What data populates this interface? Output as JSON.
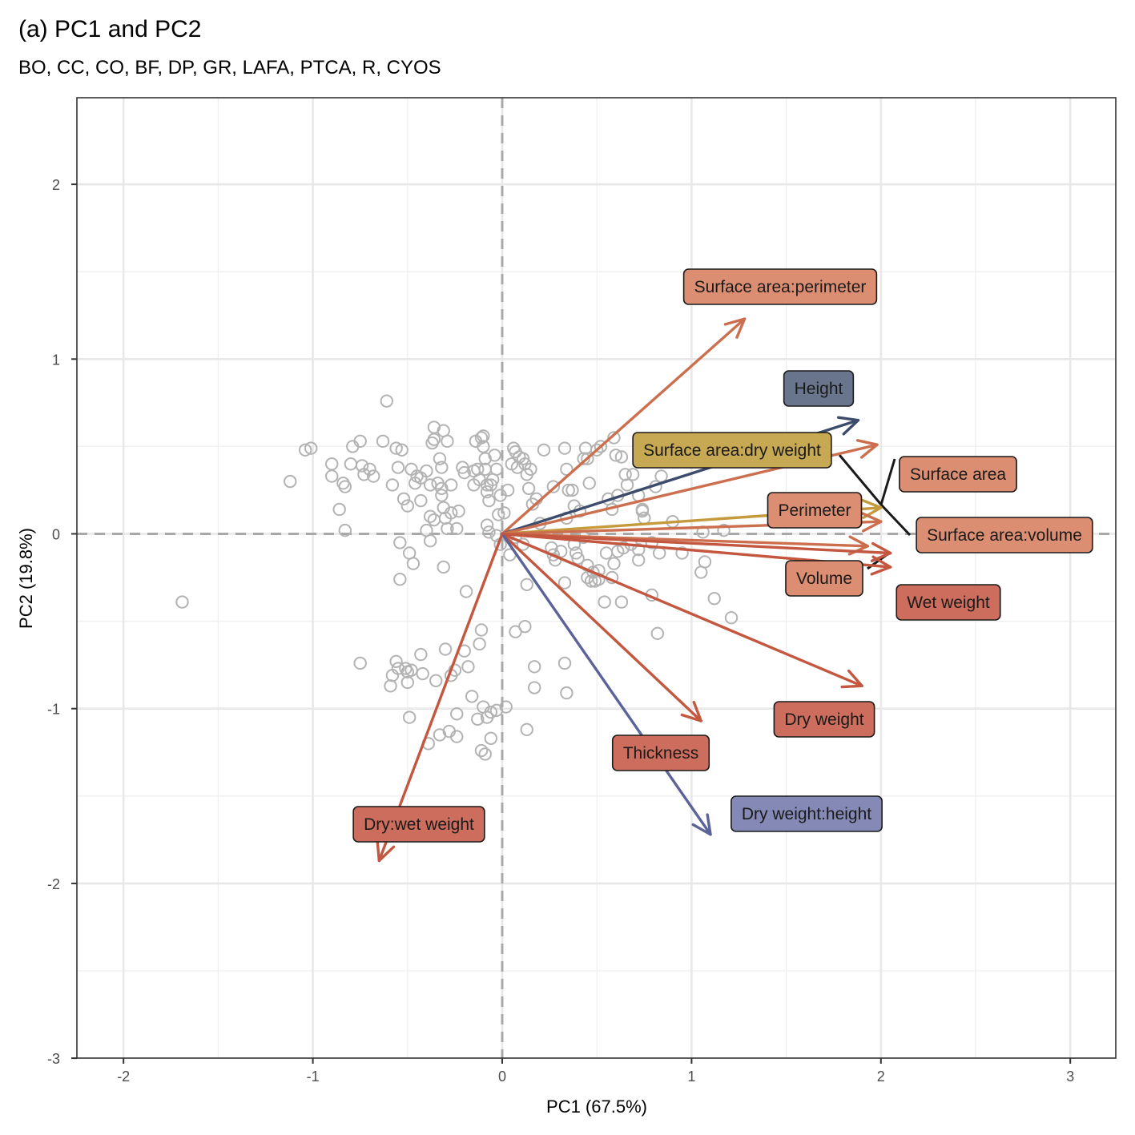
{
  "chart_data": {
    "type": "scatter",
    "title": "(a) PC1 and PC2",
    "subtitle": "BO, CC, CO, BF, DP, GR, LAFA, PTCA, R, CYOS",
    "xlabel": "PC1 (67.5%)",
    "ylabel": "PC2 (19.8%)",
    "xlim": [
      -2.25,
      3.25
    ],
    "ylim": [
      -3,
      2.45
    ],
    "xticks": [
      "-2",
      "-1",
      "0",
      "1",
      "2",
      "3"
    ],
    "yticks": [
      "-3",
      "-2",
      "-1",
      "0",
      "1",
      "2"
    ],
    "xtick_values": [
      -2,
      -1,
      0,
      1,
      2,
      3
    ],
    "ytick_values": [
      -3,
      -2,
      -1,
      0,
      1,
      2
    ],
    "grid": true,
    "reference_lines": {
      "x": 0,
      "y": 0,
      "style": "dashed"
    },
    "point_color": "#b3b3b3",
    "points": [
      [
        -1.69,
        -0.39
      ],
      [
        -0.61,
        0.76
      ],
      [
        -1.12,
        0.3
      ],
      [
        -1.04,
        0.48
      ],
      [
        -1.01,
        0.49
      ],
      [
        -0.9,
        0.4
      ],
      [
        -0.9,
        0.33
      ],
      [
        -0.84,
        0.29
      ],
      [
        -0.83,
        0.27
      ],
      [
        -0.86,
        0.14
      ],
      [
        -0.83,
        0.02
      ],
      [
        -0.8,
        0.4
      ],
      [
        -0.79,
        0.5
      ],
      [
        -0.75,
        0.53
      ],
      [
        -0.74,
        0.39
      ],
      [
        -0.73,
        0.34
      ],
      [
        -0.7,
        0.37
      ],
      [
        -0.68,
        0.33
      ],
      [
        -0.63,
        0.53
      ],
      [
        -0.58,
        0.28
      ],
      [
        -0.56,
        0.49
      ],
      [
        -0.55,
        0.38
      ],
      [
        -0.53,
        0.48
      ],
      [
        -0.52,
        0.2
      ],
      [
        -0.5,
        0.16
      ],
      [
        -0.48,
        0.37
      ],
      [
        -0.46,
        0.29
      ],
      [
        -0.45,
        0.33
      ],
      [
        -0.43,
        0.32
      ],
      [
        -0.43,
        0.19
      ],
      [
        -0.4,
        0.36
      ],
      [
        -0.38,
        0.28
      ],
      [
        -0.37,
        0.52
      ],
      [
        -0.36,
        0.61
      ],
      [
        -0.36,
        0.54
      ],
      [
        -0.34,
        0.29
      ],
      [
        -0.33,
        0.43
      ],
      [
        -0.32,
        0.38
      ],
      [
        -0.32,
        0.26
      ],
      [
        -0.32,
        0.22
      ],
      [
        -0.31,
        0.15
      ],
      [
        -0.3,
        0.09
      ],
      [
        -0.31,
        0.59
      ],
      [
        -0.29,
        0.53
      ],
      [
        -0.29,
        0.03
      ],
      [
        -0.27,
        0.28
      ],
      [
        -0.27,
        0.12
      ],
      [
        -0.36,
        0.08
      ],
      [
        -0.38,
        0.1
      ],
      [
        -0.4,
        0.02
      ],
      [
        -0.24,
        0.03
      ],
      [
        -0.23,
        0.13
      ],
      [
        -0.21,
        0.38
      ],
      [
        -0.2,
        0.35
      ],
      [
        -0.15,
        0.36
      ],
      [
        -0.15,
        0.28
      ],
      [
        -0.14,
        0.53
      ],
      [
        -0.13,
        0.37
      ],
      [
        -0.12,
        0.31
      ],
      [
        -0.11,
        0.55
      ],
      [
        -0.1,
        0.56
      ],
      [
        -0.1,
        0.5
      ],
      [
        -0.09,
        0.43
      ],
      [
        -0.09,
        0.37
      ],
      [
        -0.08,
        0.28
      ],
      [
        -0.08,
        0.24
      ],
      [
        -0.07,
        0.19
      ],
      [
        -0.06,
        0.28
      ],
      [
        -0.05,
        0.31
      ],
      [
        -0.04,
        0.45
      ],
      [
        -0.03,
        0.37
      ],
      [
        -0.02,
        0.11
      ],
      [
        -0.01,
        0.22
      ],
      [
        0.01,
        0.12
      ],
      [
        0.03,
        0.25
      ],
      [
        0.05,
        0.4
      ],
      [
        0.06,
        0.49
      ],
      [
        0.07,
        0.47
      ],
      [
        0.08,
        0.38
      ],
      [
        0.09,
        0.44
      ],
      [
        0.11,
        0.43
      ],
      [
        0.12,
        0.4
      ],
      [
        0.13,
        0.34
      ],
      [
        0.14,
        0.26
      ],
      [
        0.15,
        0.37
      ],
      [
        0.16,
        0.17
      ],
      [
        0.18,
        0.2
      ],
      [
        0.2,
        0.06
      ],
      [
        0.22,
        0.48
      ],
      [
        0.27,
        0.27
      ],
      [
        0.33,
        0.49
      ],
      [
        0.34,
        0.37
      ],
      [
        0.34,
        0.09
      ],
      [
        0.35,
        0.25
      ],
      [
        0.37,
        0.25
      ],
      [
        0.38,
        0.16
      ],
      [
        0.41,
        0.13
      ],
      [
        0.43,
        0.43
      ],
      [
        0.44,
        0.49
      ],
      [
        0.45,
        0.43
      ],
      [
        0.46,
        0.29
      ],
      [
        0.5,
        0.48
      ],
      [
        0.52,
        0.5
      ],
      [
        0.56,
        0.2
      ],
      [
        0.58,
        0.14
      ],
      [
        0.59,
        0.55
      ],
      [
        0.6,
        0.45
      ],
      [
        0.61,
        0.22
      ],
      [
        0.63,
        0.44
      ],
      [
        0.65,
        0.34
      ],
      [
        0.66,
        0.28
      ],
      [
        0.69,
        0.34
      ],
      [
        0.72,
        0.22
      ],
      [
        0.74,
        0.14
      ],
      [
        0.74,
        0.13
      ],
      [
        0.75,
        0.09
      ],
      [
        0.81,
        0.27
      ],
      [
        0.84,
        0.33
      ],
      [
        0.9,
        0.07
      ],
      [
        1.06,
        0.01
      ],
      [
        1.17,
        0.02
      ],
      [
        -0.08,
        0.05
      ],
      [
        -0.07,
        0.01
      ],
      [
        -0.03,
        -0.01
      ],
      [
        0.03,
        -0.01
      ],
      [
        -0.01,
        -0.06
      ],
      [
        0.07,
        -0.02
      ],
      [
        0.11,
        -0.06
      ],
      [
        0.04,
        -0.12
      ],
      [
        0.26,
        -0.08
      ],
      [
        0.27,
        -0.12
      ],
      [
        0.28,
        -0.15
      ],
      [
        0.31,
        -0.1
      ],
      [
        0.33,
        -0.28
      ],
      [
        0.38,
        -0.06
      ],
      [
        0.39,
        -0.11
      ],
      [
        0.4,
        -0.14
      ],
      [
        0.45,
        -0.25
      ],
      [
        0.47,
        -0.27
      ],
      [
        0.49,
        -0.27
      ],
      [
        0.51,
        -0.21
      ],
      [
        0.51,
        -0.26
      ],
      [
        0.55,
        -0.11
      ],
      [
        0.58,
        -0.25
      ],
      [
        0.59,
        -0.17
      ],
      [
        0.61,
        -0.1
      ],
      [
        0.64,
        -0.08
      ],
      [
        0.68,
        -0.06
      ],
      [
        0.72,
        -0.09
      ],
      [
        0.72,
        -0.15
      ],
      [
        0.79,
        -0.05
      ],
      [
        0.79,
        -0.35
      ],
      [
        0.83,
        -0.11
      ],
      [
        0.95,
        -0.11
      ],
      [
        1.05,
        -0.22
      ],
      [
        1.07,
        -0.16
      ],
      [
        1.12,
        -0.37
      ],
      [
        1.21,
        -0.48
      ],
      [
        0.82,
        -0.57
      ],
      [
        0.54,
        -0.39
      ],
      [
        0.63,
        -0.39
      ],
      [
        0.43,
        -0.02
      ],
      [
        0.45,
        -0.18
      ],
      [
        0.48,
        -0.22
      ],
      [
        -0.54,
        -0.05
      ],
      [
        -0.49,
        -0.11
      ],
      [
        -0.47,
        -0.17
      ],
      [
        -0.54,
        -0.26
      ],
      [
        -0.38,
        -0.04
      ],
      [
        -0.31,
        -0.19
      ],
      [
        -0.19,
        -0.33
      ],
      [
        -0.75,
        -0.74
      ],
      [
        -0.56,
        -0.73
      ],
      [
        -0.55,
        -0.77
      ],
      [
        -0.51,
        -0.77
      ],
      [
        -0.5,
        -0.79
      ],
      [
        -0.48,
        -0.78
      ],
      [
        -0.5,
        -0.85
      ],
      [
        -0.58,
        -0.81
      ],
      [
        -0.59,
        -0.87
      ],
      [
        -0.43,
        -0.69
      ],
      [
        -0.42,
        -0.8
      ],
      [
        -0.35,
        -0.84
      ],
      [
        -0.3,
        -0.66
      ],
      [
        -0.27,
        -0.81
      ],
      [
        -0.25,
        -0.78
      ],
      [
        -0.2,
        -0.67
      ],
      [
        -0.18,
        -0.76
      ],
      [
        -0.16,
        -0.93
      ],
      [
        -0.12,
        -0.63
      ],
      [
        -0.11,
        -0.55
      ],
      [
        -0.1,
        -0.99
      ],
      [
        -0.08,
        -1.05
      ],
      [
        -0.06,
        -1.02
      ],
      [
        -0.03,
        -1.01
      ],
      [
        0.02,
        -0.99
      ],
      [
        -0.13,
        -1.06
      ],
      [
        -0.06,
        -1.17
      ],
      [
        -0.11,
        -1.24
      ],
      [
        -0.09,
        -1.26
      ],
      [
        -0.24,
        -1.03
      ],
      [
        -0.24,
        -1.16
      ],
      [
        -0.28,
        -1.13
      ],
      [
        -0.33,
        -1.15
      ],
      [
        -0.39,
        -1.2
      ],
      [
        -0.49,
        -1.05
      ],
      [
        0.07,
        -0.56
      ],
      [
        0.12,
        -0.53
      ],
      [
        0.17,
        -0.76
      ],
      [
        0.17,
        -0.88
      ],
      [
        0.33,
        -0.74
      ],
      [
        0.34,
        -0.91
      ],
      [
        0.13,
        -1.12
      ],
      [
        0.13,
        -0.29
      ]
    ],
    "arrows": [
      {
        "name": "Surface area:perimeter",
        "x": 1.28,
        "y": 1.23,
        "color": "#cc6f4f",
        "label_fill": "#dc8e72"
      },
      {
        "name": "Height",
        "x": 1.88,
        "y": 0.65,
        "color": "#3d4c6b",
        "label_fill": "#69758c"
      },
      {
        "name": "Surface area:dry weight",
        "x": 1.98,
        "y": 0.51,
        "color": "#cc6f4f",
        "label_fill": "#c7a953"
      },
      {
        "name": "Surface area",
        "x": 2.0,
        "y": 0.15,
        "color": "#c49a3c",
        "label_fill": "#dc8e72"
      },
      {
        "name": "Perimeter",
        "x": 2.0,
        "y": 0.07,
        "color": "#cc6f4f",
        "label_fill": "#dc8e72"
      },
      {
        "name": "Surface area:volume",
        "x": 1.93,
        "y": -0.07,
        "color": "#cc6f4f",
        "label_fill": "#dc8e72"
      },
      {
        "name": "Volume",
        "x": 2.05,
        "y": -0.11,
        "color": "#c4573f",
        "label_fill": "#dc8e72"
      },
      {
        "name": "Wet weight",
        "x": 2.05,
        "y": -0.19,
        "color": "#c4573f",
        "label_fill": "#cd6d5d"
      },
      {
        "name": "Dry weight",
        "x": 1.9,
        "y": -0.87,
        "color": "#c4573f",
        "label_fill": "#cd6d5d"
      },
      {
        "name": "Thickness",
        "x": 1.05,
        "y": -1.07,
        "color": "#c4573f",
        "label_fill": "#cd6d5d"
      },
      {
        "name": "Dry weight:height",
        "x": 1.1,
        "y": -1.72,
        "color": "#5c6399",
        "label_fill": "#8589b5"
      },
      {
        "name": "Dry:wet weight",
        "x": -0.65,
        "y": -1.87,
        "color": "#c4573f",
        "label_fill": "#cd6d5d"
      }
    ]
  }
}
